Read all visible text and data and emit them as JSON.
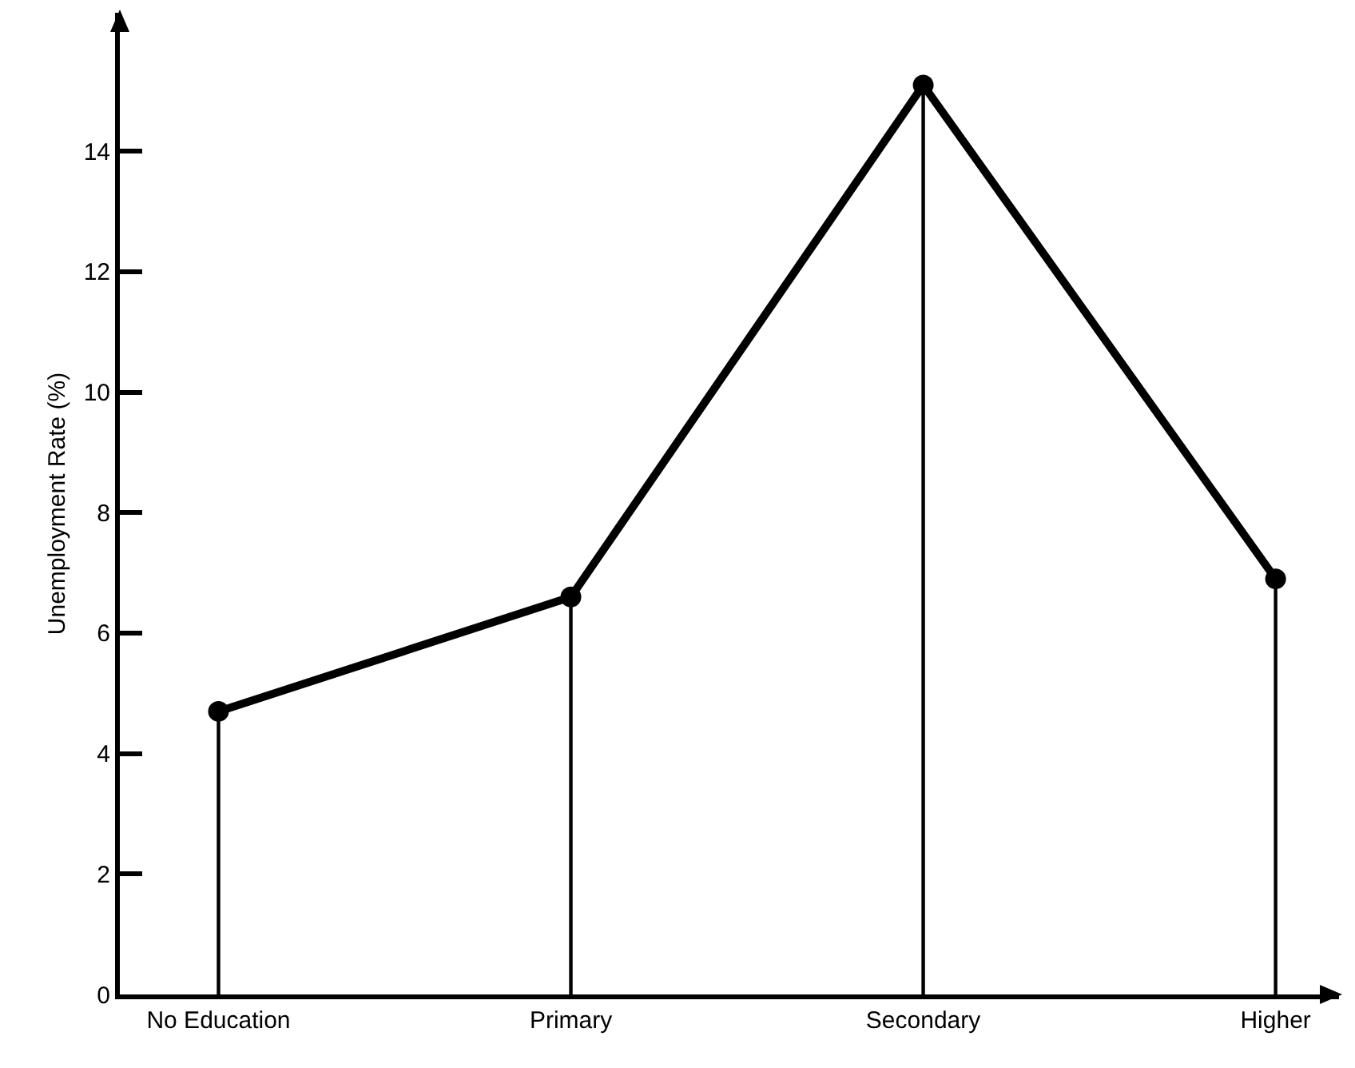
{
  "chart_data": {
    "type": "line",
    "ylabel": "Unemployment Rate (%)",
    "categories": [
      "No Education",
      "Primary",
      "Secondary",
      "Higher"
    ],
    "series": [
      {
        "type": "lollipop",
        "color": "#000000",
        "marker": "circle",
        "values": [
          4.7,
          6.6,
          15.1,
          6.9
        ]
      },
      {
        "color": "#000000",
        "values": [
          4.7,
          6.6,
          15.1,
          6.9
        ]
      }
    ],
    "ylim": [
      0,
      16.3
    ],
    "yticks": [
      0,
      2,
      4,
      6,
      8,
      10,
      12,
      14
    ],
    "grid": false,
    "line_style": "solid"
  }
}
